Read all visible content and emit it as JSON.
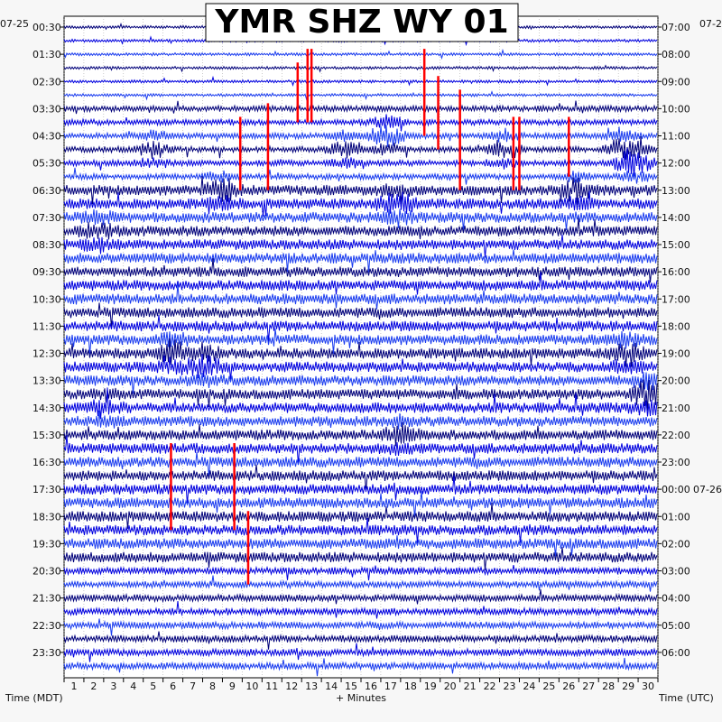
{
  "chart_data": {
    "type": "helicorder",
    "title": "YMR SHZ WY 01",
    "left_date": "07-25",
    "right_date_start": "07-2",
    "right_date_next": "07-26",
    "left_axis_label": "Time (MDT)",
    "right_axis_label": "Time (UTC)",
    "x_axis_label": "+ Minutes",
    "x_range": [
      0,
      30
    ],
    "x_ticks": [
      "1",
      "2",
      "3",
      "4",
      "5",
      "6",
      "7",
      "8",
      "9",
      "10",
      "11",
      "12",
      "13",
      "14",
      "15",
      "16",
      "17",
      "18",
      "19",
      "20",
      "21",
      "22",
      "23",
      "24",
      "25",
      "26",
      "27",
      "28",
      "29",
      "30"
    ],
    "left_hour_labels": [
      "00:30",
      "01:30",
      "02:30",
      "03:30",
      "04:30",
      "05:30",
      "06:30",
      "07:30",
      "08:30",
      "09:30",
      "10:30",
      "11:30",
      "12:30",
      "13:30",
      "14:30",
      "15:30",
      "16:30",
      "17:30",
      "18:30",
      "19:30",
      "20:30",
      "21:30",
      "22:30",
      "23:30"
    ],
    "right_hour_labels": [
      "07:00",
      "08:00",
      "09:00",
      "10:00",
      "11:00",
      "12:00",
      "13:00",
      "14:00",
      "15:00",
      "16:00",
      "17:00",
      "18:00",
      "19:00",
      "20:00",
      "21:00",
      "22:00",
      "23:00",
      "00:00",
      "01:00",
      "02:00",
      "03:00",
      "04:00",
      "05:00",
      "06:00"
    ],
    "trace_count": 48,
    "trace_colors": [
      "#00007a",
      "#0000e0",
      "#1a3cf0"
    ],
    "event_color": "#ff0000",
    "grid": true,
    "events": [
      {
        "minute": 11.8,
        "row_start": 3,
        "row_end": 7
      },
      {
        "minute": 12.3,
        "row_start": 2,
        "row_end": 7
      },
      {
        "minute": 12.5,
        "row_start": 2,
        "row_end": 7
      },
      {
        "minute": 10.3,
        "row_start": 6,
        "row_end": 12
      },
      {
        "minute": 8.9,
        "row_start": 7,
        "row_end": 12
      },
      {
        "minute": 18.2,
        "row_start": 2,
        "row_end": 8
      },
      {
        "minute": 18.9,
        "row_start": 4,
        "row_end": 9
      },
      {
        "minute": 20.0,
        "row_start": 5,
        "row_end": 12
      },
      {
        "minute": 22.7,
        "row_start": 7,
        "row_end": 12
      },
      {
        "minute": 23.0,
        "row_start": 7,
        "row_end": 12
      },
      {
        "minute": 25.5,
        "row_start": 7,
        "row_end": 11
      },
      {
        "minute": 5.4,
        "row_start": 31,
        "row_end": 37
      },
      {
        "minute": 8.6,
        "row_start": 31,
        "row_end": 37
      },
      {
        "minute": 9.3,
        "row_start": 36,
        "row_end": 41
      }
    ],
    "bursts": [
      {
        "minute": 16.3,
        "row": 8,
        "amp": 14
      },
      {
        "minute": 22.3,
        "row": 9,
        "amp": 12
      },
      {
        "minute": 28.2,
        "row": 9,
        "amp": 12
      },
      {
        "minute": 28.8,
        "row": 10,
        "amp": 14
      },
      {
        "minute": 4.5,
        "row": 9,
        "amp": 10
      },
      {
        "minute": 8.0,
        "row": 12,
        "amp": 12
      },
      {
        "minute": 16.8,
        "row": 13,
        "amp": 14
      },
      {
        "minute": 25.9,
        "row": 12,
        "amp": 12
      },
      {
        "minute": 1.7,
        "row": 15,
        "amp": 12
      },
      {
        "minute": 5.5,
        "row": 24,
        "amp": 14
      },
      {
        "minute": 7.2,
        "row": 25,
        "amp": 12
      },
      {
        "minute": 28.5,
        "row": 24,
        "amp": 12
      },
      {
        "minute": 29.5,
        "row": 27,
        "amp": 16
      },
      {
        "minute": 2.0,
        "row": 28,
        "amp": 10
      },
      {
        "minute": 17.0,
        "row": 30,
        "amp": 10
      },
      {
        "minute": 14.2,
        "row": 9,
        "amp": 10
      }
    ]
  }
}
